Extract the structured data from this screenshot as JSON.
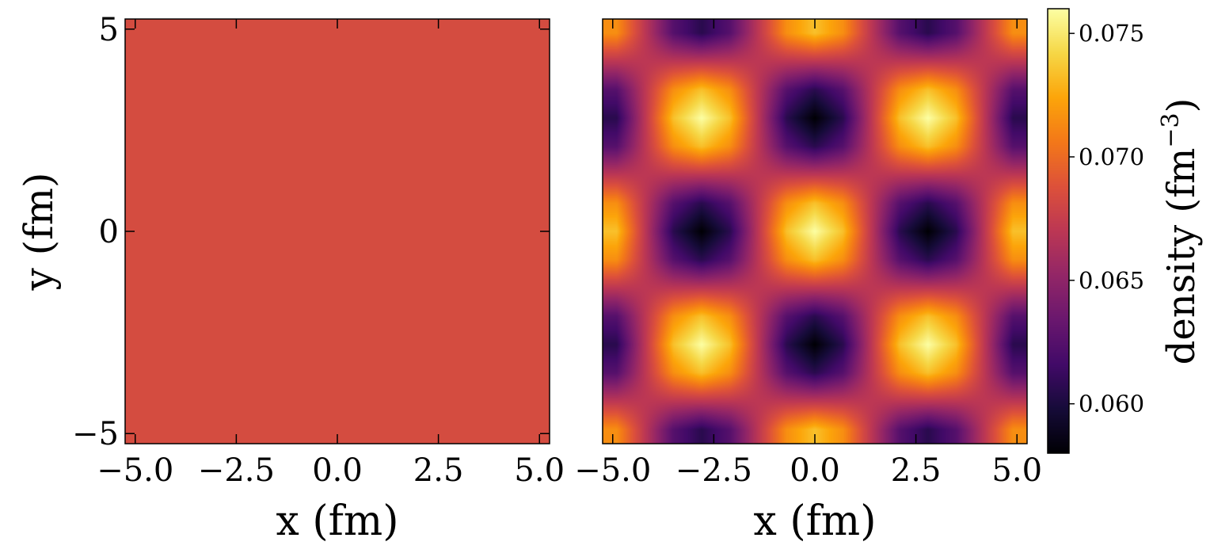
{
  "chart_data": [
    {
      "type": "heatmap",
      "panel": "left",
      "xlabel": "x (fm)",
      "ylabel": "y (fm)",
      "xlim": [
        -5.25,
        5.25
      ],
      "ylim": [
        -5.25,
        5.25
      ],
      "xticks": [
        -5.0,
        -2.5,
        0.0,
        2.5,
        5.0
      ],
      "xtick_labels": [
        "−5.0",
        "−2.5",
        "0.0",
        "2.5",
        "5.0"
      ],
      "yticks": [
        -5,
        0,
        5
      ],
      "ytick_labels": [
        "−5",
        "0",
        "5"
      ],
      "colormap": "inferno",
      "uniform_value": 0.0685,
      "color": "#D44C40"
    },
    {
      "type": "heatmap",
      "panel": "right",
      "xlabel": "x (fm)",
      "xlim": [
        -5.25,
        5.25
      ],
      "ylim": [
        -5.25,
        5.25
      ],
      "xticks": [
        -5.0,
        -2.5,
        0.0,
        2.5,
        5.0
      ],
      "xtick_labels": [
        "−5.0",
        "−2.5",
        "0.0",
        "2.5",
        "5.0"
      ],
      "colormap": "inferno",
      "x": [
        -4.9,
        -4.2,
        -3.5,
        -2.8,
        -2.1,
        -1.4,
        -0.7,
        0,
        0.7,
        1.4,
        2.1,
        2.8,
        3.5,
        4.2,
        4.9
      ],
      "y": [
        -4.9,
        -4.2,
        -3.5,
        -2.8,
        -2.1,
        -1.4,
        -0.7,
        0,
        0.7,
        1.4,
        2.1,
        2.8,
        3.5,
        4.2,
        4.9
      ],
      "z": [
        [
          0.0715,
          0.067,
          0.0625,
          0.0606,
          0.0625,
          0.067,
          0.0715,
          0.0734,
          0.0715,
          0.067,
          0.0625,
          0.0606,
          0.0625,
          0.067,
          0.0715
        ],
        [
          0.067,
          0.067,
          0.067,
          0.067,
          0.067,
          0.067,
          0.067,
          0.067,
          0.067,
          0.067,
          0.067,
          0.067,
          0.067,
          0.067,
          0.067
        ],
        [
          0.0625,
          0.067,
          0.0715,
          0.0734,
          0.0715,
          0.067,
          0.0625,
          0.0606,
          0.0625,
          0.067,
          0.0715,
          0.0734,
          0.0715,
          0.067,
          0.0625
        ],
        [
          0.0606,
          0.067,
          0.0734,
          0.076,
          0.0734,
          0.067,
          0.0606,
          0.058,
          0.0606,
          0.067,
          0.0734,
          0.076,
          0.0734,
          0.067,
          0.0606
        ],
        [
          0.0625,
          0.067,
          0.0715,
          0.0734,
          0.0715,
          0.067,
          0.0625,
          0.0606,
          0.0625,
          0.067,
          0.0715,
          0.0734,
          0.0715,
          0.067,
          0.0625
        ],
        [
          0.067,
          0.067,
          0.067,
          0.067,
          0.067,
          0.067,
          0.067,
          0.067,
          0.067,
          0.067,
          0.067,
          0.067,
          0.067,
          0.067,
          0.067
        ],
        [
          0.0715,
          0.067,
          0.0625,
          0.0606,
          0.0625,
          0.067,
          0.0715,
          0.0734,
          0.0715,
          0.067,
          0.0625,
          0.0606,
          0.0625,
          0.067,
          0.0715
        ],
        [
          0.0734,
          0.067,
          0.0606,
          0.058,
          0.0606,
          0.067,
          0.0734,
          0.076,
          0.0734,
          0.067,
          0.0606,
          0.058,
          0.0606,
          0.067,
          0.0734
        ],
        [
          0.0715,
          0.067,
          0.0625,
          0.0606,
          0.0625,
          0.067,
          0.0715,
          0.0734,
          0.0715,
          0.067,
          0.0625,
          0.0606,
          0.0625,
          0.067,
          0.0715
        ],
        [
          0.067,
          0.067,
          0.067,
          0.067,
          0.067,
          0.067,
          0.067,
          0.067,
          0.067,
          0.067,
          0.067,
          0.067,
          0.067,
          0.067,
          0.067
        ],
        [
          0.0625,
          0.067,
          0.0715,
          0.0734,
          0.0715,
          0.067,
          0.0625,
          0.0606,
          0.0625,
          0.067,
          0.0715,
          0.0734,
          0.0715,
          0.067,
          0.0625
        ],
        [
          0.0606,
          0.067,
          0.0734,
          0.076,
          0.0734,
          0.067,
          0.0606,
          0.058,
          0.0606,
          0.067,
          0.0734,
          0.076,
          0.0734,
          0.067,
          0.0606
        ],
        [
          0.0625,
          0.067,
          0.0715,
          0.0734,
          0.0715,
          0.067,
          0.0625,
          0.0606,
          0.0625,
          0.067,
          0.0715,
          0.0734,
          0.0715,
          0.067,
          0.0625
        ],
        [
          0.067,
          0.067,
          0.067,
          0.067,
          0.067,
          0.067,
          0.067,
          0.067,
          0.067,
          0.067,
          0.067,
          0.067,
          0.067,
          0.067,
          0.067
        ],
        [
          0.0715,
          0.067,
          0.0625,
          0.0606,
          0.0625,
          0.067,
          0.0715,
          0.0734,
          0.0715,
          0.067,
          0.0625,
          0.0606,
          0.0625,
          0.067,
          0.0715
        ]
      ]
    }
  ],
  "colorbar": {
    "label": "density (fm",
    "label_exponent": "−3",
    "label_close": ")",
    "range": [
      0.058,
      0.076
    ],
    "ticks": [
      0.06,
      0.065,
      0.07,
      0.075
    ],
    "tick_labels": [
      "0.060",
      "0.065",
      "0.070",
      "0.075"
    ],
    "colormap": "inferno"
  }
}
